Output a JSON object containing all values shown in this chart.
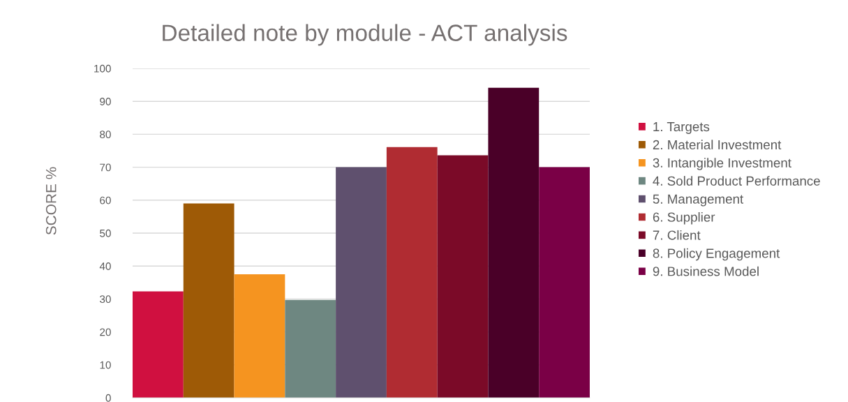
{
  "chart_data": {
    "type": "bar",
    "title": "Detailed note by module - ACT analysis",
    "ylabel": "SCORE %",
    "categories": [
      null
    ],
    "series": [
      {
        "name": "1. Targets",
        "color": "#d01040",
        "values": [
          32.3
        ]
      },
      {
        "name": "2. Material Investment",
        "color": "#9e5a06",
        "values": [
          59
        ]
      },
      {
        "name": "3. Intangible Investment",
        "color": "#f59420",
        "values": [
          37.5
        ]
      },
      {
        "name": "4. Sold Product Performance",
        "color": "#6e8781",
        "values": [
          29.7
        ]
      },
      {
        "name": "5. Management",
        "color": "#5f506e",
        "values": [
          70
        ]
      },
      {
        "name": "6. Supplier",
        "color": "#b02c32",
        "values": [
          76.1
        ]
      },
      {
        "name": "7. Client",
        "color": "#7b0a28",
        "values": [
          73.6
        ]
      },
      {
        "name": "8. Policy Engagement",
        "color": "#4a0028",
        "values": [
          94.1
        ]
      },
      {
        "name": "9. Business Model",
        "color": "#7a0046",
        "values": [
          70
        ]
      }
    ],
    "ylim": [
      0,
      100
    ],
    "yticks": [
      0,
      10,
      20,
      30,
      40,
      50,
      60,
      70,
      80,
      90,
      100
    ],
    "grid": "y",
    "legend": "right"
  }
}
